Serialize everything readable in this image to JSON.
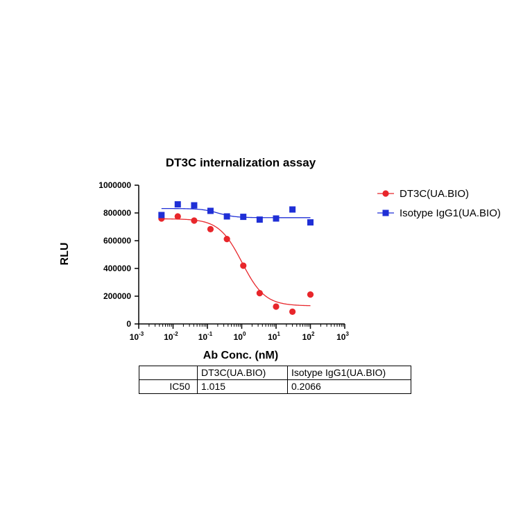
{
  "chart_data": {
    "type": "scatter",
    "title": "DT3C internalization assay",
    "xlabel": "Ab Conc. (nM)",
    "ylabel": "RLU",
    "x_scale": "log",
    "xlim": [
      0.001,
      1000
    ],
    "ylim": [
      0,
      1000000
    ],
    "x_ticks": [
      {
        "value": 0.001,
        "base": "10",
        "exp": "-3"
      },
      {
        "value": 0.01,
        "base": "10",
        "exp": "-2"
      },
      {
        "value": 0.1,
        "base": "10",
        "exp": "-1"
      },
      {
        "value": 1,
        "base": "10",
        "exp": "0"
      },
      {
        "value": 10,
        "base": "10",
        "exp": "1"
      },
      {
        "value": 100,
        "base": "10",
        "exp": "2"
      },
      {
        "value": 1000,
        "base": "10",
        "exp": "3"
      }
    ],
    "y_ticks": [
      "0",
      "200000",
      "400000",
      "600000",
      "800000",
      "1000000"
    ],
    "y_tick_values": [
      0,
      200000,
      400000,
      600000,
      800000,
      1000000
    ],
    "grid": false,
    "legend_position": "right",
    "series": [
      {
        "name": "DT3C(UA.BIO)",
        "color": "#e8262b",
        "marker": "circle",
        "x": [
          0.0046,
          0.0137,
          0.0412,
          0.123,
          0.37,
          1.11,
          3.33,
          10,
          30,
          100
        ],
        "y": [
          760000,
          775000,
          745000,
          683000,
          612000,
          420000,
          222000,
          125000,
          88000,
          212000
        ],
        "fit": {
          "top": 758000,
          "bottom": 130000,
          "ic50": 1.015,
          "hill": -1.3
        }
      },
      {
        "name": "Isotype IgG1(UA.BIO)",
        "color": "#1f2fd6",
        "marker": "square",
        "x": [
          0.0046,
          0.0137,
          0.0412,
          0.123,
          0.37,
          1.11,
          3.33,
          10,
          30,
          100
        ],
        "y": [
          785000,
          862000,
          855000,
          815000,
          775000,
          772000,
          752000,
          760000,
          825000,
          732000
        ],
        "fit": {
          "top": 832000,
          "bottom": 766000,
          "ic50": 0.2066,
          "hill": -1.8
        }
      }
    ],
    "table": {
      "columns": [
        "",
        "DT3C(UA.BIO)",
        "Isotype IgG1(UA.BIO)"
      ],
      "rows": [
        {
          "label": "IC50",
          "values": [
            "1.015",
            "0.2066"
          ]
        }
      ]
    }
  }
}
